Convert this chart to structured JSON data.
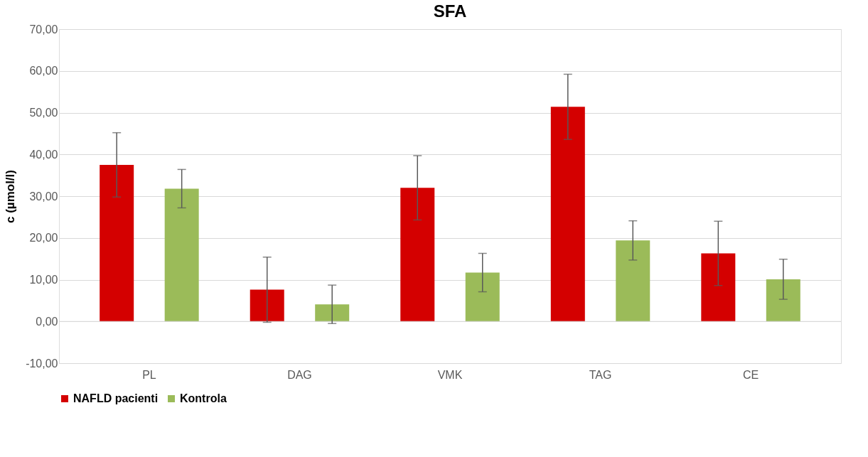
{
  "chart_data": {
    "type": "bar",
    "title": "SFA",
    "ylabel": "c (µmol/l)",
    "categories": [
      "PL",
      "DAG",
      "VMK",
      "TAG",
      "CE"
    ],
    "series": [
      {
        "name": "NAFLD pacienti",
        "color": "#d40000",
        "values": [
          37.5,
          7.6,
          32.0,
          51.4,
          16.3
        ],
        "errors": [
          7.7,
          7.8,
          7.7,
          7.8,
          7.7
        ]
      },
      {
        "name": "Kontrola",
        "color": "#9bbb59",
        "values": [
          31.8,
          4.1,
          11.7,
          19.4,
          10.1
        ],
        "errors": [
          4.6,
          4.6,
          4.6,
          4.7,
          4.8
        ]
      }
    ],
    "ylim": [
      -10,
      70
    ],
    "yticks": [
      {
        "value": -10,
        "label": "-10,00"
      },
      {
        "value": 0,
        "label": "0,00"
      },
      {
        "value": 10,
        "label": "10,00"
      },
      {
        "value": 20,
        "label": "20,00"
      },
      {
        "value": 30,
        "label": "30,00"
      },
      {
        "value": 40,
        "label": "40,00"
      },
      {
        "value": 50,
        "label": "50,00"
      },
      {
        "value": 60,
        "label": "60,00"
      },
      {
        "value": 70,
        "label": "70,00"
      }
    ],
    "grid": "y",
    "legend": "bottom"
  }
}
